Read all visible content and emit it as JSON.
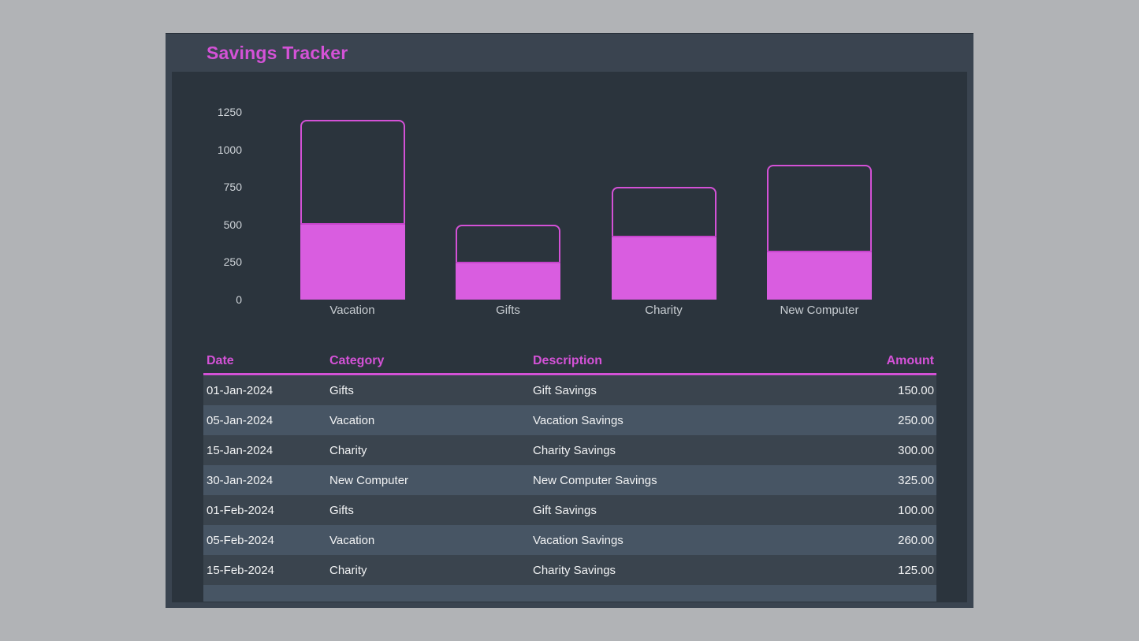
{
  "window": {
    "title": "Savings Tracker"
  },
  "colors": {
    "accent": "#d351d6",
    "bar_fill": "#d95de0",
    "bar_outline": "#d351d6",
    "frame": "#3a4450",
    "panel_bg": "#2b343d",
    "row_dark": "#3a444e",
    "row_light": "#475564",
    "text": "#f2f3f4",
    "muted_text": "#ced3d8"
  },
  "chart_data": {
    "type": "bar",
    "title": "",
    "xlabel": "",
    "ylabel": "",
    "categories": [
      "Vacation",
      "Gifts",
      "Charity",
      "New Computer"
    ],
    "series": [
      {
        "name": "goal_outline",
        "values": [
          1200,
          500,
          750,
          900
        ]
      },
      {
        "name": "saved_fill",
        "values": [
          510,
          250,
          425,
          325
        ]
      }
    ],
    "yticks": [
      0,
      250,
      500,
      750,
      1000,
      1250
    ],
    "ylim": [
      0,
      1250
    ],
    "grid": false,
    "legend": false
  },
  "table": {
    "columns": [
      "Date",
      "Category",
      "Description",
      "Amount"
    ],
    "rows": [
      {
        "date": "01-Jan-2024",
        "category": "Gifts",
        "description": "Gift Savings",
        "amount": "150.00"
      },
      {
        "date": "05-Jan-2024",
        "category": "Vacation",
        "description": "Vacation Savings",
        "amount": "250.00"
      },
      {
        "date": "15-Jan-2024",
        "category": "Charity",
        "description": "Charity Savings",
        "amount": "300.00"
      },
      {
        "date": "30-Jan-2024",
        "category": "New Computer",
        "description": "New Computer Savings",
        "amount": "325.00"
      },
      {
        "date": "01-Feb-2024",
        "category": "Gifts",
        "description": "Gift Savings",
        "amount": "100.00"
      },
      {
        "date": "05-Feb-2024",
        "category": "Vacation",
        "description": "Vacation Savings",
        "amount": "260.00"
      },
      {
        "date": "15-Feb-2024",
        "category": "Charity",
        "description": "Charity Savings",
        "amount": "125.00"
      }
    ]
  }
}
